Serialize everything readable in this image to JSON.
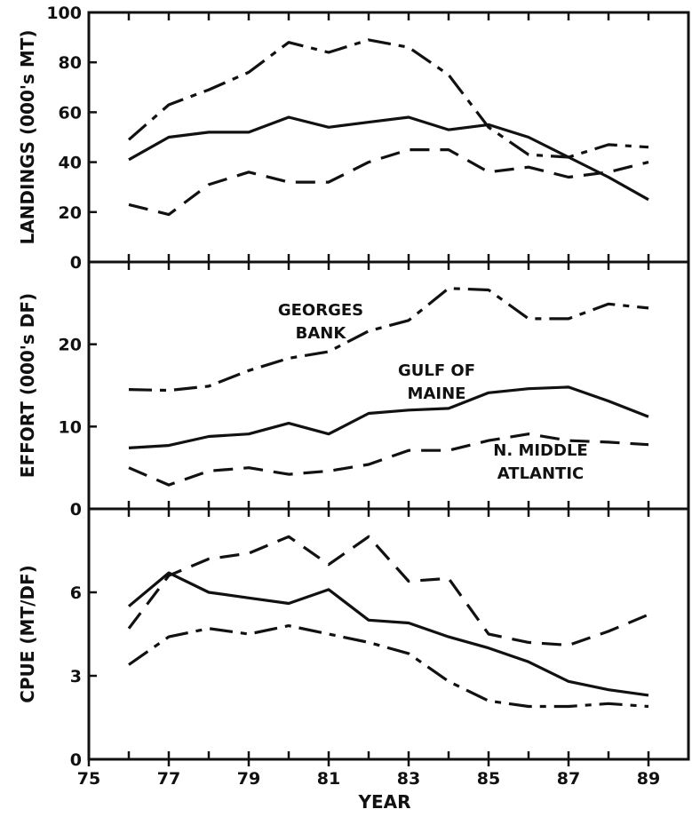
{
  "chart_data": [
    {
      "type": "line",
      "panel": "landings",
      "ylabel": "LANDINGS (000's MT)",
      "xlabel": "",
      "xlim": [
        75,
        90
      ],
      "ylim": [
        0,
        100
      ],
      "yticks": [
        0,
        20,
        40,
        60,
        80,
        100
      ],
      "x": [
        76,
        77,
        78,
        79,
        80,
        81,
        82,
        83,
        84,
        85,
        86,
        87,
        88,
        89
      ],
      "series": [
        {
          "style": "dash-dot",
          "values": [
            49,
            63,
            69,
            76,
            88,
            84,
            89,
            86,
            75,
            54,
            43,
            42,
            47,
            46
          ]
        },
        {
          "style": "solid",
          "values": [
            41,
            50,
            52,
            52,
            58,
            54,
            56,
            58,
            53,
            55,
            50,
            42,
            34,
            25
          ]
        },
        {
          "style": "dashed",
          "values": [
            23,
            19,
            31,
            36,
            32,
            32,
            40,
            45,
            45,
            36,
            38,
            34,
            36,
            40
          ]
        }
      ]
    },
    {
      "type": "line",
      "panel": "effort",
      "ylabel": "EFFORT (000's DF)",
      "xlabel": "",
      "xlim": [
        75,
        90
      ],
      "ylim": [
        0,
        30
      ],
      "yticks": [
        0,
        10,
        20
      ],
      "x": [
        76,
        77,
        78,
        79,
        80,
        81,
        82,
        83,
        84,
        85,
        86,
        87,
        88,
        89
      ],
      "series": [
        {
          "name": "GEORGES BANK",
          "style": "dash-dot",
          "values": [
            14.5,
            14.4,
            14.9,
            16.8,
            18.3,
            19.1,
            21.6,
            22.9,
            26.8,
            26.6,
            23.1,
            23.1,
            24.9,
            24.4
          ]
        },
        {
          "name": "GULF OF MAINE",
          "style": "solid",
          "values": [
            7.4,
            7.7,
            8.8,
            9.1,
            10.4,
            9.1,
            11.6,
            12.0,
            12.2,
            14.1,
            14.6,
            14.8,
            13.1,
            11.2
          ]
        },
        {
          "name": "N. MIDDLE ATLANTIC",
          "style": "dashed",
          "values": [
            5.0,
            2.9,
            4.6,
            5.0,
            4.2,
            4.6,
            5.4,
            7.1,
            7.1,
            8.3,
            9.1,
            8.3,
            8.1,
            7.8
          ]
        }
      ],
      "annotations": [
        {
          "series": "GEORGES BANK",
          "lines": [
            "GEORGES",
            "BANK"
          ]
        },
        {
          "series": "GULF OF MAINE",
          "lines": [
            "GULF OF",
            "MAINE"
          ]
        },
        {
          "series": "N. MIDDLE ATLANTIC",
          "lines": [
            "N. MIDDLE",
            "ATLANTIC"
          ]
        }
      ]
    },
    {
      "type": "line",
      "panel": "cpue",
      "ylabel": "CPUE (MT/DF)",
      "xlabel": "YEAR",
      "xlim": [
        75,
        90
      ],
      "ylim": [
        0,
        9
      ],
      "yticks": [
        0,
        3,
        6
      ],
      "xticks": [
        75,
        77,
        79,
        81,
        83,
        85,
        87,
        89
      ],
      "x": [
        76,
        77,
        78,
        79,
        80,
        81,
        82,
        83,
        84,
        85,
        86,
        87,
        88,
        89
      ],
      "series": [
        {
          "style": "dashed",
          "values": [
            4.7,
            6.6,
            7.2,
            7.4,
            8.0,
            7.0,
            8.0,
            6.4,
            6.5,
            4.5,
            4.2,
            4.1,
            4.6,
            5.2
          ]
        },
        {
          "style": "solid",
          "values": [
            5.5,
            6.7,
            6.0,
            5.8,
            5.6,
            6.1,
            5.0,
            4.9,
            4.4,
            4.0,
            3.5,
            2.8,
            2.5,
            2.3
          ]
        },
        {
          "style": "dash-dot",
          "values": [
            3.4,
            4.4,
            4.7,
            4.5,
            4.8,
            4.5,
            4.2,
            3.8,
            2.8,
            2.1,
            1.9,
            1.9,
            2.0,
            1.9
          ]
        }
      ]
    }
  ]
}
